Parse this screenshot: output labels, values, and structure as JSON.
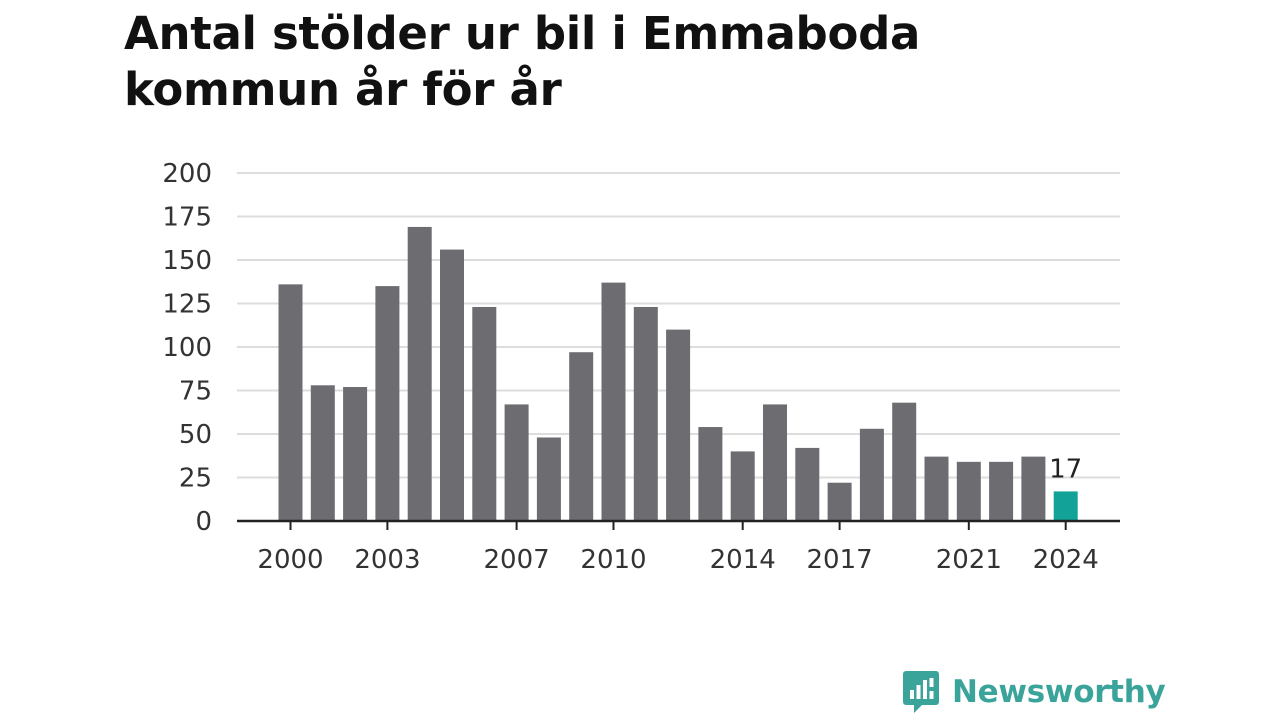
{
  "title": "Antal stölder ur bil i Emmaboda kommun år för år",
  "brand": {
    "name": "Newsworthy",
    "logo_icon": "newsworthy-logo-icon",
    "color": "#3aa39a"
  },
  "colors": {
    "bar": "#6d6c71",
    "highlight": "#12a297",
    "grid": "#dddddd",
    "axis": "#222222"
  },
  "chart_data": {
    "type": "bar",
    "title": "Antal stölder ur bil i Emmaboda kommun år för år",
    "xlabel": "",
    "ylabel": "",
    "categories": [
      "2000",
      "2001",
      "2002",
      "2003",
      "2004",
      "2005",
      "2006",
      "2007",
      "2008",
      "2009",
      "2010",
      "2011",
      "2012",
      "2013",
      "2014",
      "2015",
      "2016",
      "2017",
      "2018",
      "2019",
      "2020",
      "2021",
      "2022",
      "2023",
      "2024"
    ],
    "values": [
      136,
      78,
      77,
      135,
      169,
      156,
      123,
      67,
      48,
      97,
      137,
      123,
      110,
      54,
      40,
      67,
      42,
      22,
      53,
      68,
      37,
      34,
      34,
      37,
      17
    ],
    "x_tick_labels": [
      "2000",
      "2003",
      "2007",
      "2010",
      "2014",
      "2017",
      "2021",
      "2024"
    ],
    "y_ticks": [
      0,
      25,
      50,
      75,
      100,
      125,
      150,
      175,
      200
    ],
    "ylim": [
      0,
      200
    ],
    "grid": true,
    "legend": "none",
    "highlight": {
      "category": "2024",
      "label": "17"
    }
  }
}
